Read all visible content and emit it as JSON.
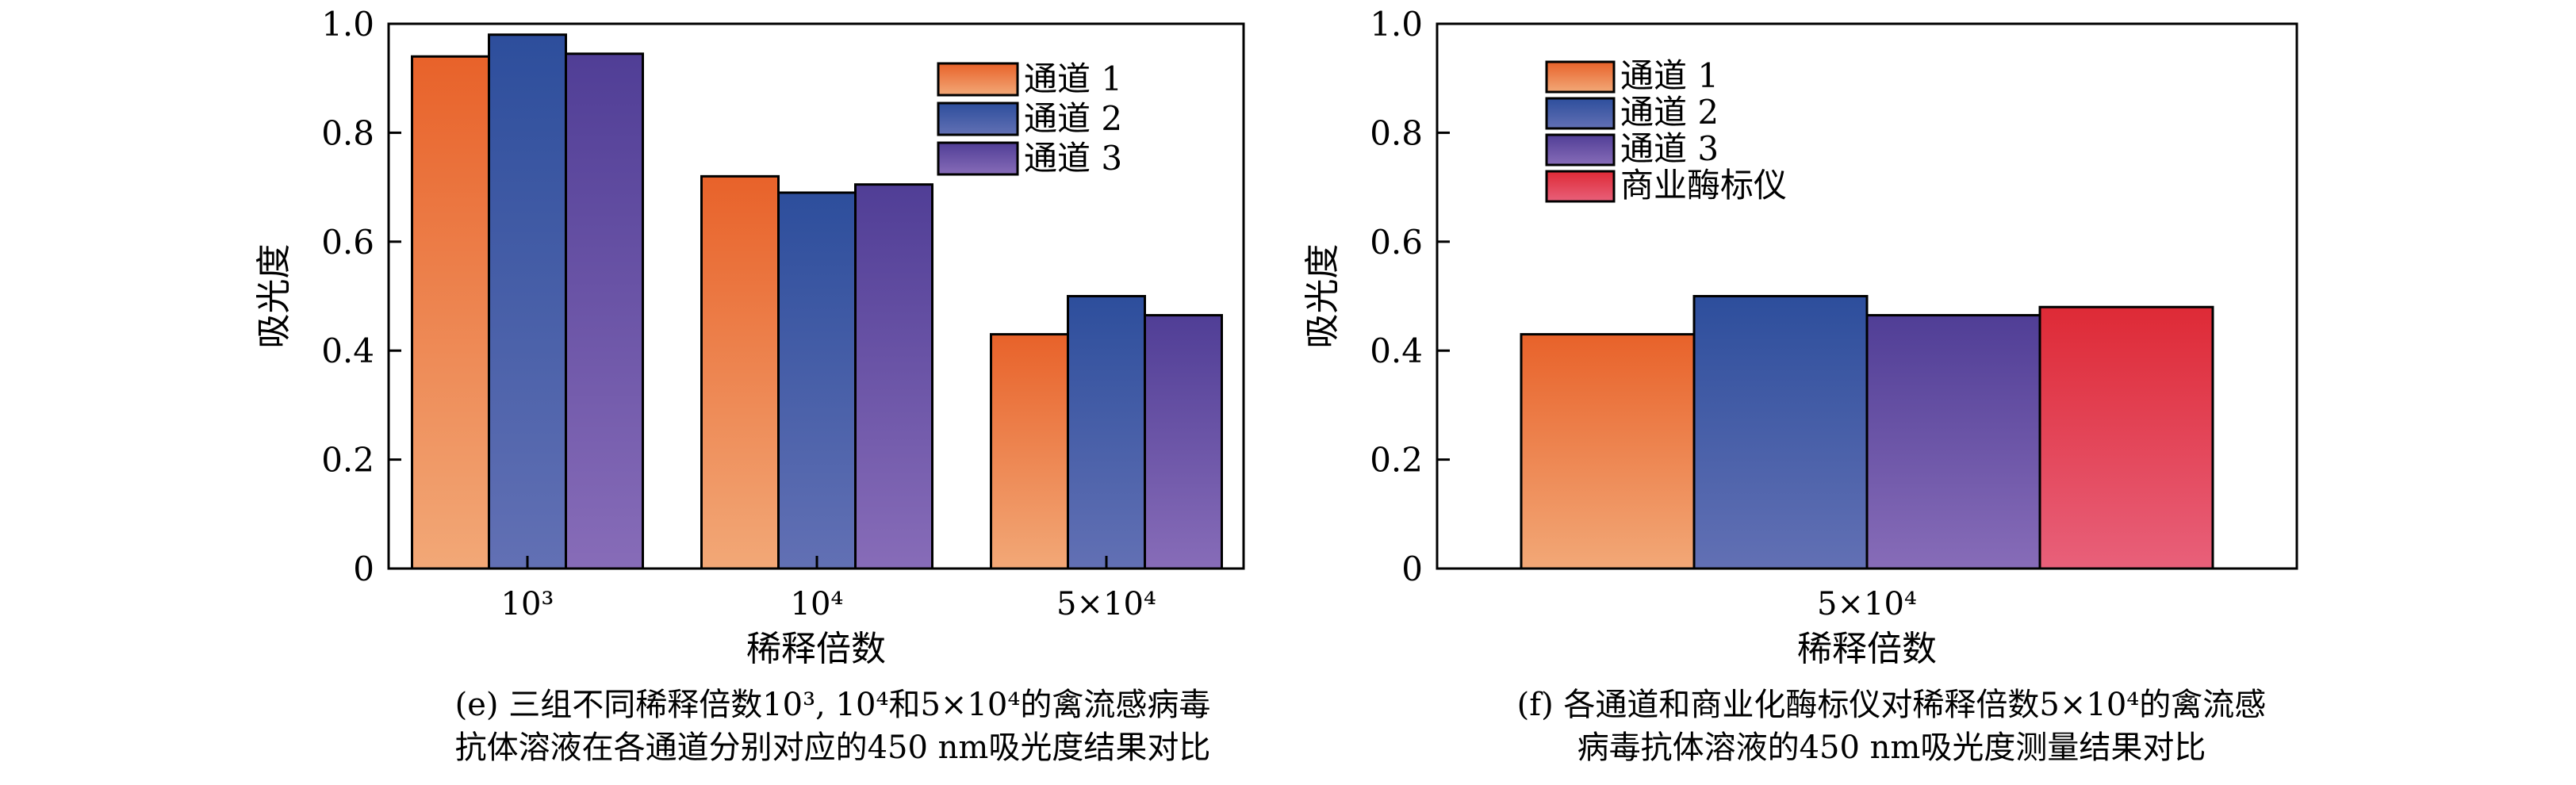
{
  "chart_data": [
    {
      "id": "e",
      "type": "bar",
      "categories": [
        "10³",
        "10⁴",
        "5×10⁴"
      ],
      "series": [
        {
          "name": "通道 1",
          "values": [
            0.94,
            0.72,
            0.43
          ],
          "color_top": "#e8622a",
          "color_bottom": "#f2a877"
        },
        {
          "name": "通道 2",
          "values": [
            0.98,
            0.69,
            0.5
          ],
          "color_top": "#2d4e9c",
          "color_bottom": "#6270b4"
        },
        {
          "name": "通道 3",
          "values": [
            0.945,
            0.705,
            0.465
          ],
          "color_top": "#503e96",
          "color_bottom": "#876cb8"
        }
      ],
      "xlabel": "稀释倍数",
      "ylabel": "吸光度",
      "ylim": [
        0,
        1.0
      ],
      "yticks": [
        "0",
        "0.2",
        "0.4",
        "0.6",
        "0.8",
        "1.0"
      ],
      "legend_position": "top-right",
      "grid": false
    },
    {
      "id": "f",
      "type": "bar",
      "categories": [
        "5×10⁴"
      ],
      "series": [
        {
          "name": "通道 1",
          "values": [
            0.43
          ],
          "color_top": "#e8622a",
          "color_bottom": "#f2a877"
        },
        {
          "name": "通道 2",
          "values": [
            0.5
          ],
          "color_top": "#2d4e9c",
          "color_bottom": "#6270b4"
        },
        {
          "name": "通道 3",
          "values": [
            0.465
          ],
          "color_top": "#503e96",
          "color_bottom": "#876cb8"
        },
        {
          "name": "商业酶标仪",
          "values": [
            0.48
          ],
          "color_top": "#de2a36",
          "color_bottom": "#e8607a"
        }
      ],
      "xlabel": "稀释倍数",
      "ylabel": "吸光度",
      "ylim": [
        0,
        1.0
      ],
      "yticks": [
        "0",
        "0.2",
        "0.4",
        "0.6",
        "0.8",
        "1.0"
      ],
      "legend_position": "top-left",
      "grid": false
    }
  ],
  "captions": {
    "e": {
      "line1": "(e) 三组不同稀释倍数10³, 10⁴和5×10⁴的禽流感病毒",
      "line2": "抗体溶液在各通道分别对应的450 nm吸光度结果对比"
    },
    "f": {
      "line1": "(f) 各通道和商业化酶标仪对稀释倍数5×10⁴的禽流感",
      "line2": "病毒抗体溶液的450 nm吸光度测量结果对比"
    }
  }
}
